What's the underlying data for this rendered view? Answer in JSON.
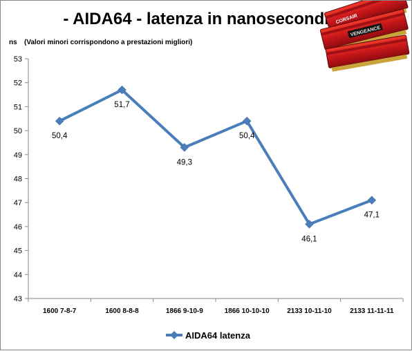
{
  "chart_data": {
    "type": "line",
    "title": "- AIDA64 - latenza in nanosecondi -",
    "ylabel": "ns",
    "subtitle": "(Valori minori corrispondono a prestazioni  migliori)",
    "categories": [
      "1600 7-8-7",
      "1600 8-8-8",
      "1866 9-10-9",
      "1866 10-10-10",
      "2133 10-11-10",
      "2133 11-11-11"
    ],
    "series": [
      {
        "name": "AIDA64 latenza",
        "values": [
          50.4,
          51.7,
          49.3,
          50.4,
          46.1,
          47.1
        ]
      }
    ],
    "data_labels": [
      "50,4",
      "51,7",
      "49,3",
      "50,4",
      "46,1",
      "47,1"
    ],
    "y_ticks": [
      "43",
      "44",
      "45",
      "46",
      "47",
      "48",
      "49",
      "50",
      "51",
      "52",
      "53"
    ],
    "ylim": [
      43,
      53
    ],
    "grid": false,
    "legend": "bottom",
    "series_color": "#4a7ebb"
  },
  "product_image": {
    "icon": "corsair-vengeance-ram-modules",
    "brand_text": "VENGEANCE",
    "maker_text": "CORSAIR"
  }
}
